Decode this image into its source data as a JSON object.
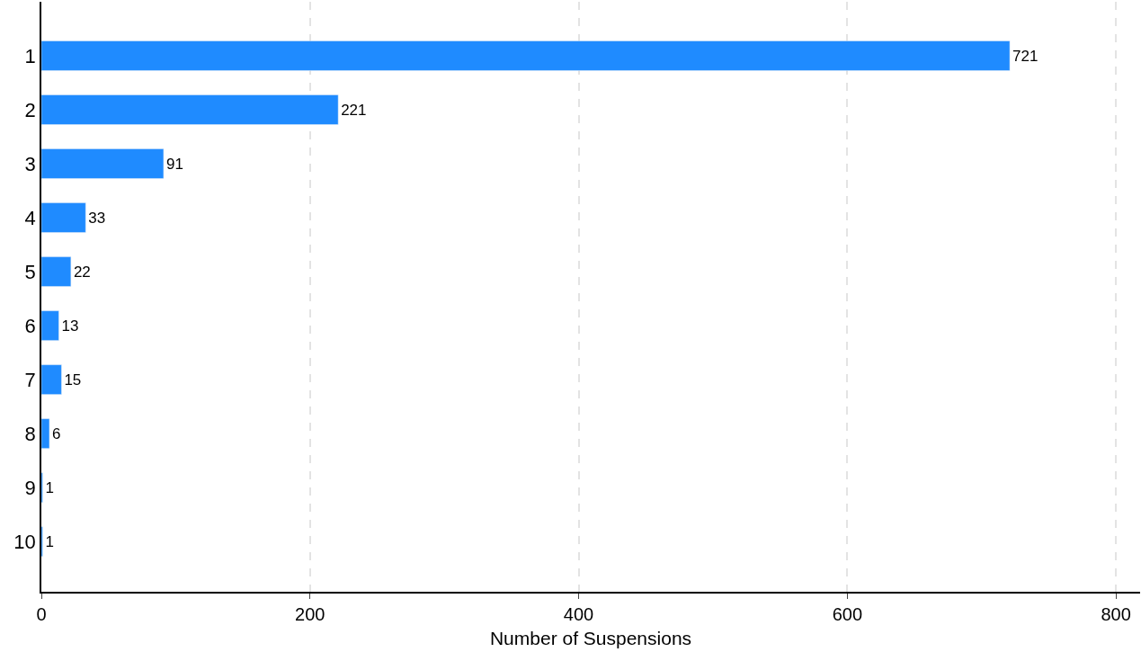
{
  "chart_data": {
    "type": "bar",
    "orientation": "horizontal",
    "xlabel": "Number of Suspensions",
    "categories": [
      "1",
      "2",
      "3",
      "4",
      "5",
      "6",
      "7",
      "8",
      "9",
      "10"
    ],
    "values": [
      721,
      221,
      91,
      33,
      22,
      13,
      15,
      6,
      1,
      1
    ],
    "color": "#1f8bff",
    "data_labels": true,
    "xlim": [
      0,
      818
    ],
    "xticks": [
      0,
      200,
      400,
      600,
      800
    ],
    "grid": "x",
    "legend": false
  }
}
